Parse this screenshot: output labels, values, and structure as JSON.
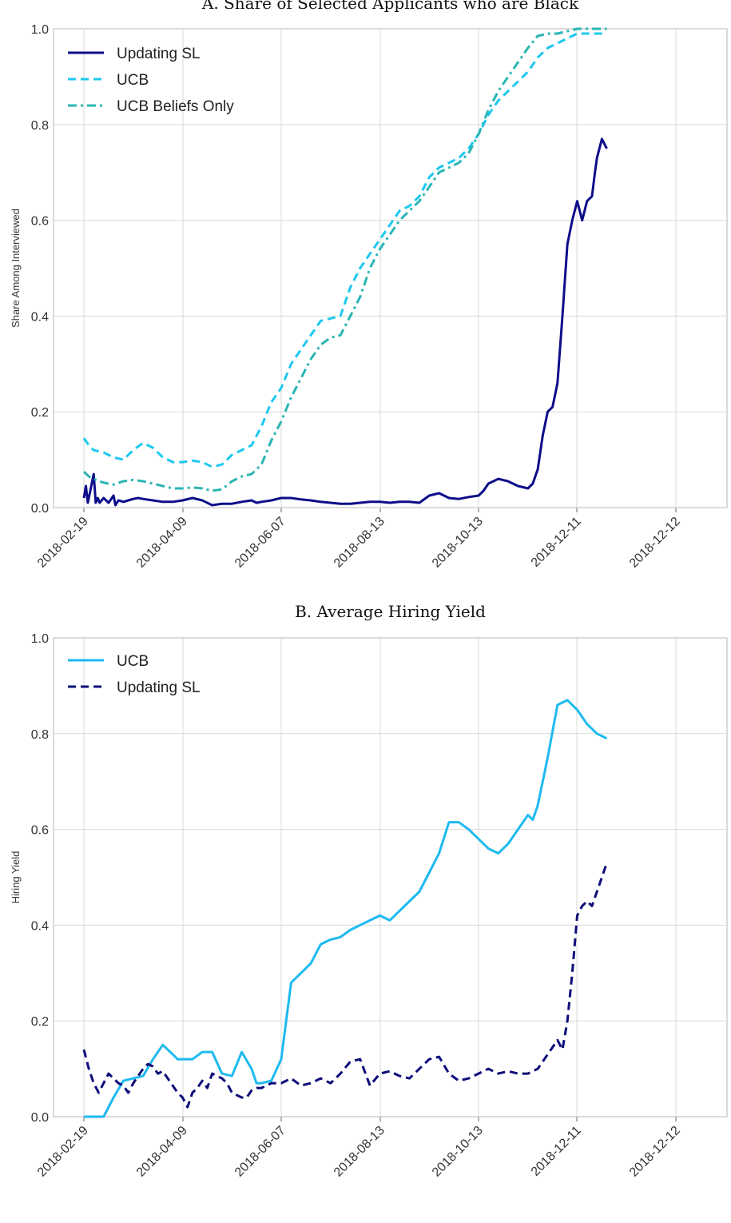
{
  "chart_data": [
    {
      "type": "line",
      "title": "A. Share of Selected Applicants who are Black",
      "xlabel": "",
      "ylabel": "Share Among Interviewed",
      "ylim": [
        0,
        1
      ],
      "yticks": [
        "0.0",
        "0.2",
        "0.4",
        "0.6",
        "0.8",
        "1.0"
      ],
      "xlim": [
        0,
        5.4
      ],
      "xtick_labels": [
        "2018-02-19",
        "2018-04-09",
        "2018-06-07",
        "2018-08-13",
        "2018-10-13",
        "2018-12-11",
        "2018-12-12"
      ],
      "legend_position": "top-left",
      "series": [
        {
          "name": "Updating SL",
          "color": "#0d0d8a",
          "style": "solid",
          "x": [
            0,
            0.02,
            0.04,
            0.06,
            0.1,
            0.12,
            0.14,
            0.16,
            0.2,
            0.25,
            0.3,
            0.32,
            0.35,
            0.4,
            0.45,
            0.5,
            0.55,
            0.6,
            0.7,
            0.8,
            0.9,
            1.0,
            1.1,
            1.2,
            1.3,
            1.4,
            1.5,
            1.6,
            1.7,
            1.75,
            1.8,
            1.9,
            2.0,
            2.1,
            2.2,
            2.3,
            2.4,
            2.5,
            2.6,
            2.7,
            2.8,
            2.9,
            3.0,
            3.1,
            3.2,
            3.3,
            3.4,
            3.5,
            3.6,
            3.7,
            3.8,
            3.9,
            4.0,
            4.05,
            4.1,
            4.2,
            4.3,
            4.4,
            4.5,
            4.55,
            4.6,
            4.65,
            4.7,
            4.75,
            4.8,
            4.85,
            4.9,
            4.95,
            5.0,
            5.05,
            5.1,
            5.15,
            5.18,
            5.2,
            5.25,
            5.3
          ],
          "y": [
            0.02,
            0.045,
            0.01,
            0.03,
            0.07,
            0.01,
            0.02,
            0.01,
            0.02,
            0.01,
            0.025,
            0.005,
            0.015,
            0.012,
            0.015,
            0.018,
            0.02,
            0.018,
            0.015,
            0.012,
            0.012,
            0.015,
            0.02,
            0.015,
            0.005,
            0.008,
            0.008,
            0.012,
            0.015,
            0.01,
            0.012,
            0.015,
            0.02,
            0.02,
            0.017,
            0.015,
            0.012,
            0.01,
            0.008,
            0.008,
            0.01,
            0.012,
            0.012,
            0.01,
            0.012,
            0.012,
            0.01,
            0.025,
            0.03,
            0.02,
            0.018,
            0.022,
            0.025,
            0.035,
            0.05,
            0.06,
            0.055,
            0.045,
            0.04,
            0.05,
            0.08,
            0.15,
            0.2,
            0.21,
            0.26,
            0.4,
            0.55,
            0.6,
            0.64,
            0.6,
            0.64,
            0.65,
            0.7,
            0.73,
            0.77,
            0.75
          ]
        },
        {
          "name": "UCB",
          "color": "#1ec8f0",
          "style": "dashed",
          "x": [
            0,
            0.05,
            0.1,
            0.2,
            0.3,
            0.4,
            0.5,
            0.6,
            0.7,
            0.8,
            0.9,
            1.0,
            1.1,
            1.2,
            1.3,
            1.4,
            1.5,
            1.6,
            1.7,
            1.8,
            1.9,
            2.0,
            2.1,
            2.2,
            2.3,
            2.4,
            2.5,
            2.6,
            2.7,
            2.8,
            2.9,
            3.0,
            3.1,
            3.2,
            3.3,
            3.4,
            3.5,
            3.6,
            3.7,
            3.8,
            3.9,
            4.0,
            4.1,
            4.2,
            4.3,
            4.4,
            4.5,
            4.6,
            4.7,
            4.8,
            4.9,
            5.0,
            5.1,
            5.2,
            5.3
          ],
          "y": [
            0.145,
            0.13,
            0.12,
            0.115,
            0.105,
            0.1,
            0.12,
            0.135,
            0.125,
            0.105,
            0.095,
            0.095,
            0.098,
            0.095,
            0.085,
            0.09,
            0.11,
            0.12,
            0.13,
            0.17,
            0.22,
            0.25,
            0.3,
            0.33,
            0.36,
            0.39,
            0.395,
            0.4,
            0.46,
            0.5,
            0.53,
            0.56,
            0.59,
            0.62,
            0.63,
            0.65,
            0.69,
            0.71,
            0.72,
            0.73,
            0.75,
            0.78,
            0.82,
            0.85,
            0.87,
            0.89,
            0.91,
            0.94,
            0.96,
            0.97,
            0.98,
            0.99,
            0.99,
            0.99,
            0.99
          ]
        },
        {
          "name": "UCB Beliefs Only",
          "color": "#2ab5b5",
          "style": "dashdot",
          "x": [
            0,
            0.05,
            0.1,
            0.2,
            0.3,
            0.4,
            0.5,
            0.6,
            0.7,
            0.8,
            0.9,
            1.0,
            1.1,
            1.2,
            1.3,
            1.4,
            1.5,
            1.6,
            1.7,
            1.8,
            1.9,
            2.0,
            2.1,
            2.2,
            2.3,
            2.4,
            2.5,
            2.6,
            2.7,
            2.8,
            2.9,
            3.0,
            3.1,
            3.2,
            3.3,
            3.4,
            3.5,
            3.6,
            3.7,
            3.8,
            3.9,
            4.0,
            4.1,
            4.2,
            4.3,
            4.4,
            4.5,
            4.6,
            4.7,
            4.8,
            4.9,
            5.0,
            5.1,
            5.2,
            5.3
          ],
          "y": [
            0.075,
            0.065,
            0.06,
            0.052,
            0.048,
            0.055,
            0.058,
            0.055,
            0.05,
            0.045,
            0.04,
            0.04,
            0.042,
            0.04,
            0.035,
            0.038,
            0.055,
            0.065,
            0.07,
            0.09,
            0.14,
            0.18,
            0.23,
            0.27,
            0.31,
            0.34,
            0.355,
            0.36,
            0.4,
            0.44,
            0.5,
            0.54,
            0.57,
            0.6,
            0.62,
            0.64,
            0.67,
            0.7,
            0.71,
            0.72,
            0.74,
            0.78,
            0.83,
            0.87,
            0.9,
            0.93,
            0.96,
            0.985,
            0.99,
            0.99,
            0.995,
            1.0,
            1.0,
            1.0,
            1.0
          ]
        }
      ]
    },
    {
      "type": "line",
      "title": "B. Average Hiring Yield",
      "xlabel": "",
      "ylabel": "Hiring Yield",
      "ylim": [
        0,
        1
      ],
      "yticks": [
        "0.0",
        "0.2",
        "0.4",
        "0.6",
        "0.8",
        "1.0"
      ],
      "xlim": [
        0,
        5.4
      ],
      "xtick_labels": [
        "2018-02-19",
        "2018-04-09",
        "2018-06-07",
        "2018-08-13",
        "2018-10-13",
        "2018-12-11",
        "2018-12-12"
      ],
      "legend_position": "top-left",
      "series": [
        {
          "name": "UCB",
          "color": "#1ebaf0",
          "style": "solid",
          "x": [
            0,
            0.1,
            0.2,
            0.3,
            0.4,
            0.5,
            0.6,
            0.7,
            0.8,
            0.9,
            0.95,
            1.0,
            1.1,
            1.2,
            1.3,
            1.4,
            1.5,
            1.6,
            1.7,
            1.75,
            1.8,
            1.9,
            2.0,
            2.1,
            2.2,
            2.3,
            2.4,
            2.5,
            2.6,
            2.7,
            2.8,
            2.9,
            3.0,
            3.1,
            3.2,
            3.3,
            3.4,
            3.5,
            3.6,
            3.7,
            3.8,
            3.9,
            4.0,
            4.1,
            4.2,
            4.3,
            4.4,
            4.5,
            4.55,
            4.6,
            4.7,
            4.8,
            4.9,
            5.0,
            5.1,
            5.2,
            5.3
          ],
          "y": [
            0.0,
            0.0,
            0.0,
            0.04,
            0.075,
            0.08,
            0.085,
            0.12,
            0.15,
            0.13,
            0.12,
            0.12,
            0.12,
            0.135,
            0.135,
            0.09,
            0.085,
            0.135,
            0.1,
            0.07,
            0.07,
            0.075,
            0.12,
            0.28,
            0.3,
            0.32,
            0.36,
            0.37,
            0.375,
            0.39,
            0.4,
            0.41,
            0.42,
            0.41,
            0.43,
            0.45,
            0.47,
            0.51,
            0.55,
            0.615,
            0.615,
            0.6,
            0.58,
            0.56,
            0.55,
            0.57,
            0.6,
            0.63,
            0.62,
            0.65,
            0.75,
            0.86,
            0.87,
            0.85,
            0.82,
            0.8,
            0.79
          ]
        },
        {
          "name": "Updating SL",
          "color": "#0d0d7a",
          "style": "dashed",
          "x": [
            0,
            0.05,
            0.1,
            0.15,
            0.2,
            0.25,
            0.3,
            0.35,
            0.4,
            0.45,
            0.5,
            0.55,
            0.6,
            0.65,
            0.7,
            0.75,
            0.8,
            0.85,
            0.9,
            0.95,
            1.0,
            1.05,
            1.1,
            1.15,
            1.2,
            1.25,
            1.3,
            1.35,
            1.4,
            1.45,
            1.5,
            1.55,
            1.6,
            1.65,
            1.7,
            1.75,
            1.8,
            1.9,
            2.0,
            2.1,
            2.2,
            2.3,
            2.4,
            2.5,
            2.6,
            2.7,
            2.8,
            2.9,
            3.0,
            3.1,
            3.2,
            3.3,
            3.4,
            3.5,
            3.6,
            3.7,
            3.8,
            3.9,
            4.0,
            4.1,
            4.2,
            4.3,
            4.4,
            4.5,
            4.6,
            4.7,
            4.8,
            4.85,
            4.9,
            4.95,
            5.0,
            5.05,
            5.1,
            5.15,
            5.2,
            5.25,
            5.3
          ],
          "y": [
            0.14,
            0.1,
            0.07,
            0.05,
            0.07,
            0.09,
            0.08,
            0.07,
            0.065,
            0.05,
            0.07,
            0.085,
            0.1,
            0.11,
            0.105,
            0.09,
            0.095,
            0.08,
            0.065,
            0.05,
            0.04,
            0.02,
            0.05,
            0.06,
            0.075,
            0.06,
            0.09,
            0.085,
            0.08,
            0.07,
            0.05,
            0.045,
            0.04,
            0.04,
            0.055,
            0.06,
            0.06,
            0.07,
            0.07,
            0.08,
            0.065,
            0.07,
            0.08,
            0.07,
            0.09,
            0.115,
            0.12,
            0.065,
            0.09,
            0.095,
            0.085,
            0.08,
            0.1,
            0.12,
            0.125,
            0.09,
            0.075,
            0.08,
            0.09,
            0.1,
            0.09,
            0.095,
            0.09,
            0.09,
            0.1,
            0.13,
            0.16,
            0.14,
            0.2,
            0.3,
            0.42,
            0.44,
            0.45,
            0.44,
            0.47,
            0.5,
            0.53
          ]
        }
      ]
    }
  ]
}
